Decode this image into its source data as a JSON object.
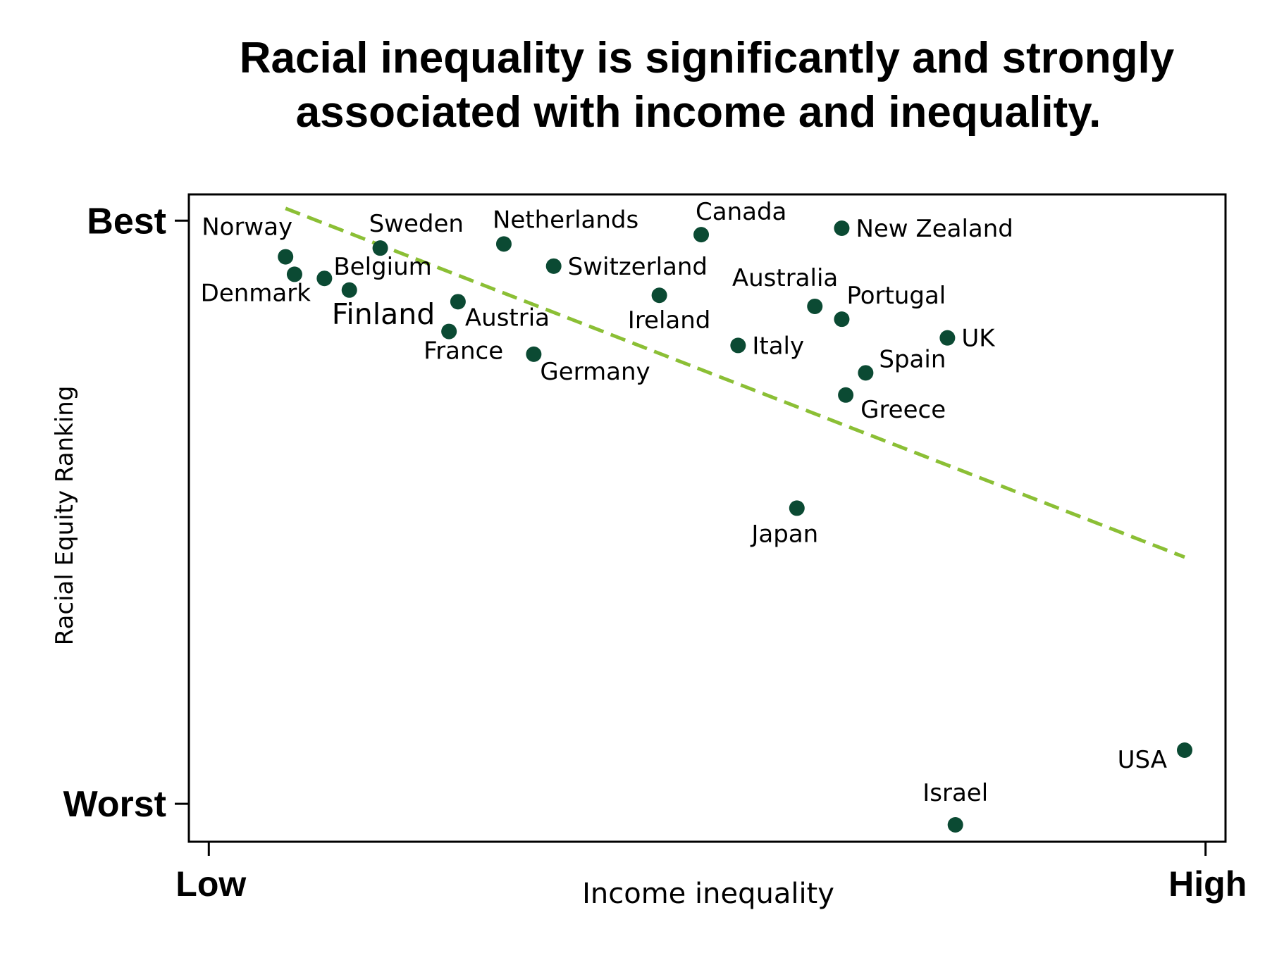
{
  "chart_data": {
    "type": "scatter",
    "title": [
      "Racial inequality is significantly and strongly",
      "associated with income and inequality."
    ],
    "xlabel": "Income inequality",
    "ylabel": "Racial Equity Ranking",
    "x_ticks": [
      {
        "value": 0,
        "label": "Low"
      },
      {
        "value": 100,
        "label": "High"
      }
    ],
    "y_ticks": [
      {
        "value": 100,
        "label": "Best"
      },
      {
        "value": 0,
        "label": "Worst"
      }
    ],
    "xlim": [
      -2,
      102
    ],
    "ylim": [
      -6.5,
      104.5
    ],
    "grid": false,
    "legend": "none",
    "colors": {
      "point": "#0b4a33",
      "trend": "#8bbf35",
      "axis": "#000000"
    },
    "points": [
      {
        "name": "Norway",
        "x": 7.7,
        "y": 93.8,
        "label_pos": "above-left"
      },
      {
        "name": "Denmark",
        "x": 8.6,
        "y": 90.8,
        "label_pos": "below-left"
      },
      {
        "name": "Belgium",
        "x": 11.6,
        "y": 90.1,
        "label_pos": "right-up"
      },
      {
        "name": "Finland",
        "x": 14.1,
        "y": 88.1,
        "label_pos": "below-big"
      },
      {
        "name": "Sweden",
        "x": 17.2,
        "y": 95.3,
        "label_pos": "above-right"
      },
      {
        "name": "Austria",
        "x": 25.0,
        "y": 86.1,
        "label_pos": "below-right"
      },
      {
        "name": "France",
        "x": 24.1,
        "y": 81.0,
        "label_pos": "below-left"
      },
      {
        "name": "Netherlands",
        "x": 29.6,
        "y": 96.0,
        "label_pos": "above-right"
      },
      {
        "name": "Switzerland",
        "x": 34.6,
        "y": 92.2,
        "label_pos": "right"
      },
      {
        "name": "Germany",
        "x": 32.6,
        "y": 77.1,
        "label_pos": "below-right"
      },
      {
        "name": "Ireland",
        "x": 45.2,
        "y": 87.2,
        "label_pos": "below"
      },
      {
        "name": "Canada",
        "x": 49.4,
        "y": 97.6,
        "label_pos": "above-right"
      },
      {
        "name": "Italy",
        "x": 53.1,
        "y": 78.6,
        "label_pos": "right"
      },
      {
        "name": "Australia",
        "x": 60.8,
        "y": 85.3,
        "label_pos": "above-left"
      },
      {
        "name": "New Zealand",
        "x": 63.5,
        "y": 98.7,
        "label_pos": "right"
      },
      {
        "name": "Portugal",
        "x": 63.5,
        "y": 83.1,
        "label_pos": "above-right"
      },
      {
        "name": "Spain",
        "x": 65.9,
        "y": 73.9,
        "label_pos": "right-up"
      },
      {
        "name": "Greece",
        "x": 63.9,
        "y": 70.1,
        "label_pos": "below-right"
      },
      {
        "name": "UK",
        "x": 74.1,
        "y": 79.9,
        "label_pos": "right"
      },
      {
        "name": "Japan",
        "x": 59.0,
        "y": 50.7,
        "label_pos": "below"
      },
      {
        "name": "Israel",
        "x": 74.9,
        "y": -3.6,
        "label_pos": "above"
      },
      {
        "name": "USA",
        "x": 97.9,
        "y": 9.2,
        "label_pos": "below-left"
      }
    ],
    "trendline": {
      "style": "dashed",
      "x": [
        7.7,
        97.9
      ],
      "y": [
        102.1,
        42.3
      ]
    }
  }
}
